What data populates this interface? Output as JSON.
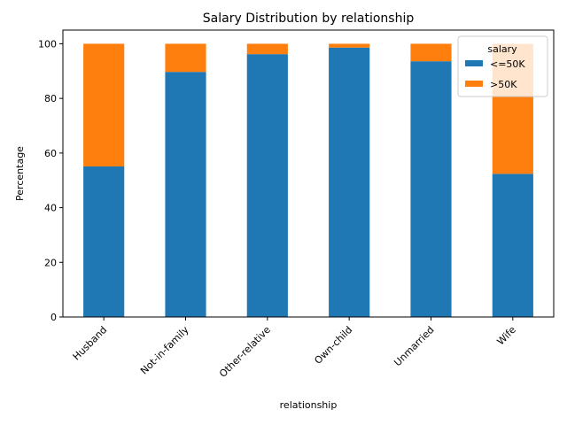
{
  "chart_data": {
    "type": "bar",
    "stacked": true,
    "title": "Salary Distribution by relationship",
    "xlabel": "relationship",
    "ylabel": "Percentage",
    "ylim": [
      0,
      105
    ],
    "yticks": [
      0,
      20,
      40,
      60,
      80,
      100
    ],
    "categories": [
      "Husband",
      "Not-in-family",
      "Other-relative",
      "Own-child",
      "Unmarried",
      "Wife"
    ],
    "series": [
      {
        "name": "<=50K",
        "color": "#1f77b4",
        "values": [
          55.1,
          89.7,
          96.2,
          98.6,
          93.6,
          52.4
        ]
      },
      {
        "name": ">50K",
        "color": "#ff7f0e",
        "values": [
          44.9,
          10.3,
          3.8,
          1.4,
          6.4,
          47.6
        ]
      }
    ],
    "legend": {
      "title": "salary",
      "position": "top-right"
    },
    "grid": false
  }
}
